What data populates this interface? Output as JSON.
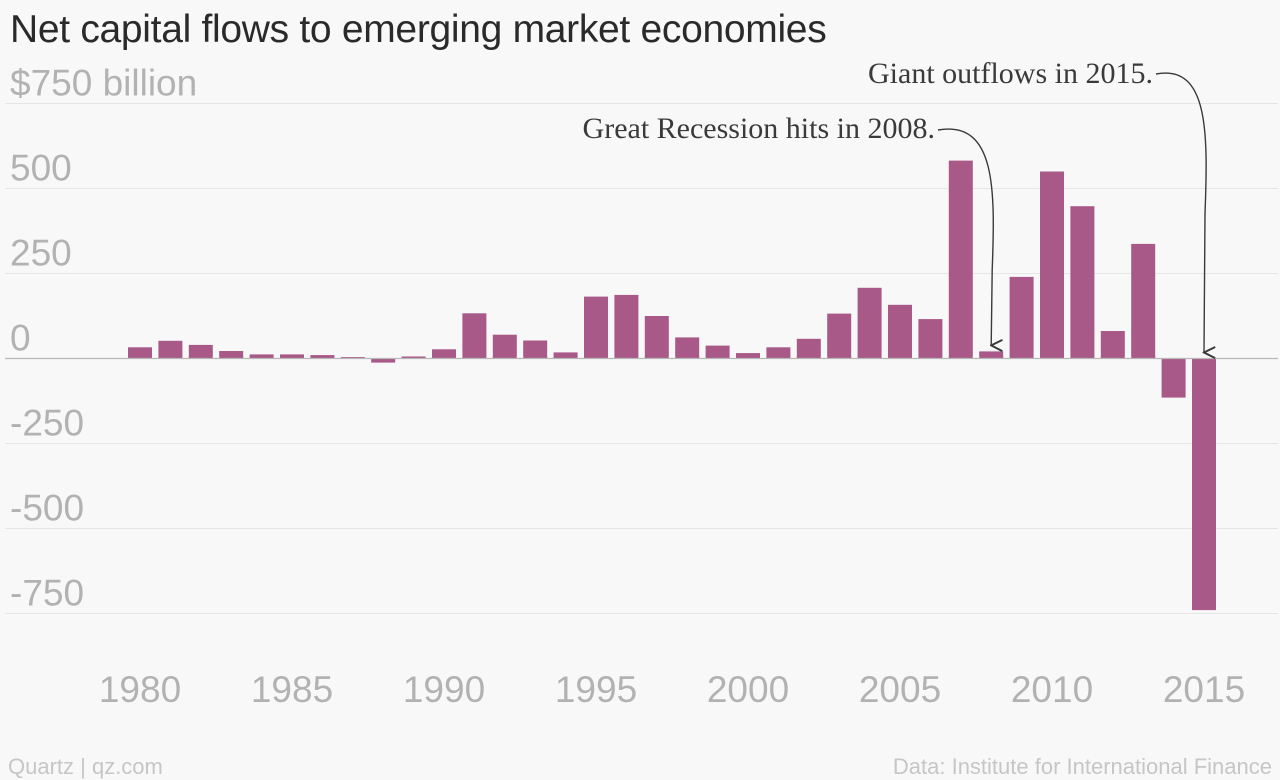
{
  "title": "Net capital flows to emerging market economies",
  "footer": {
    "left": "Quartz | qz.com",
    "right": "Data: Institute for International Finance"
  },
  "colors": {
    "bar": "#a95988",
    "grid": "#e6e6e6",
    "zero": "#b8b8b8",
    "tick": "#b2b2b2",
    "annotation": "#3a3a3a",
    "background": "#f8f8f8"
  },
  "chart_data": {
    "type": "bar",
    "title": "Net capital flows to emerging market economies",
    "xlabel": "",
    "ylabel": "",
    "ylim": [
      -750,
      750
    ],
    "y_ticks": [
      {
        "value": 750,
        "label": "$750 billion"
      },
      {
        "value": 500,
        "label": "500"
      },
      {
        "value": 250,
        "label": "250"
      },
      {
        "value": 0,
        "label": "0"
      },
      {
        "value": -250,
        "label": "-250"
      },
      {
        "value": -500,
        "label": "-500"
      },
      {
        "value": -750,
        "label": "-750"
      }
    ],
    "x_ticks": [
      "1980",
      "1985",
      "1990",
      "1995",
      "2000",
      "2005",
      "2010",
      "2015"
    ],
    "grid": true,
    "legend": "none",
    "categories": [
      1980,
      1981,
      1982,
      1983,
      1984,
      1985,
      1986,
      1987,
      1988,
      1989,
      1990,
      1991,
      1992,
      1993,
      1994,
      1995,
      1996,
      1997,
      1998,
      1999,
      2000,
      2001,
      2002,
      2003,
      2004,
      2005,
      2006,
      2007,
      2008,
      2009,
      2010,
      2011,
      2012,
      2013,
      2014,
      2015
    ],
    "values": [
      33,
      52,
      40,
      22,
      12,
      12,
      10,
      4,
      -12,
      6,
      27,
      133,
      70,
      53,
      18,
      182,
      187,
      125,
      62,
      38,
      16,
      33,
      58,
      132,
      208,
      158,
      116,
      582,
      21,
      240,
      550,
      448,
      81,
      337,
      -115,
      -740
    ],
    "annotations": [
      {
        "text": "Great Recession hits in 2008.",
        "x": 2008
      },
      {
        "text": "Giant outflows in 2015.",
        "x": 2015
      }
    ]
  }
}
